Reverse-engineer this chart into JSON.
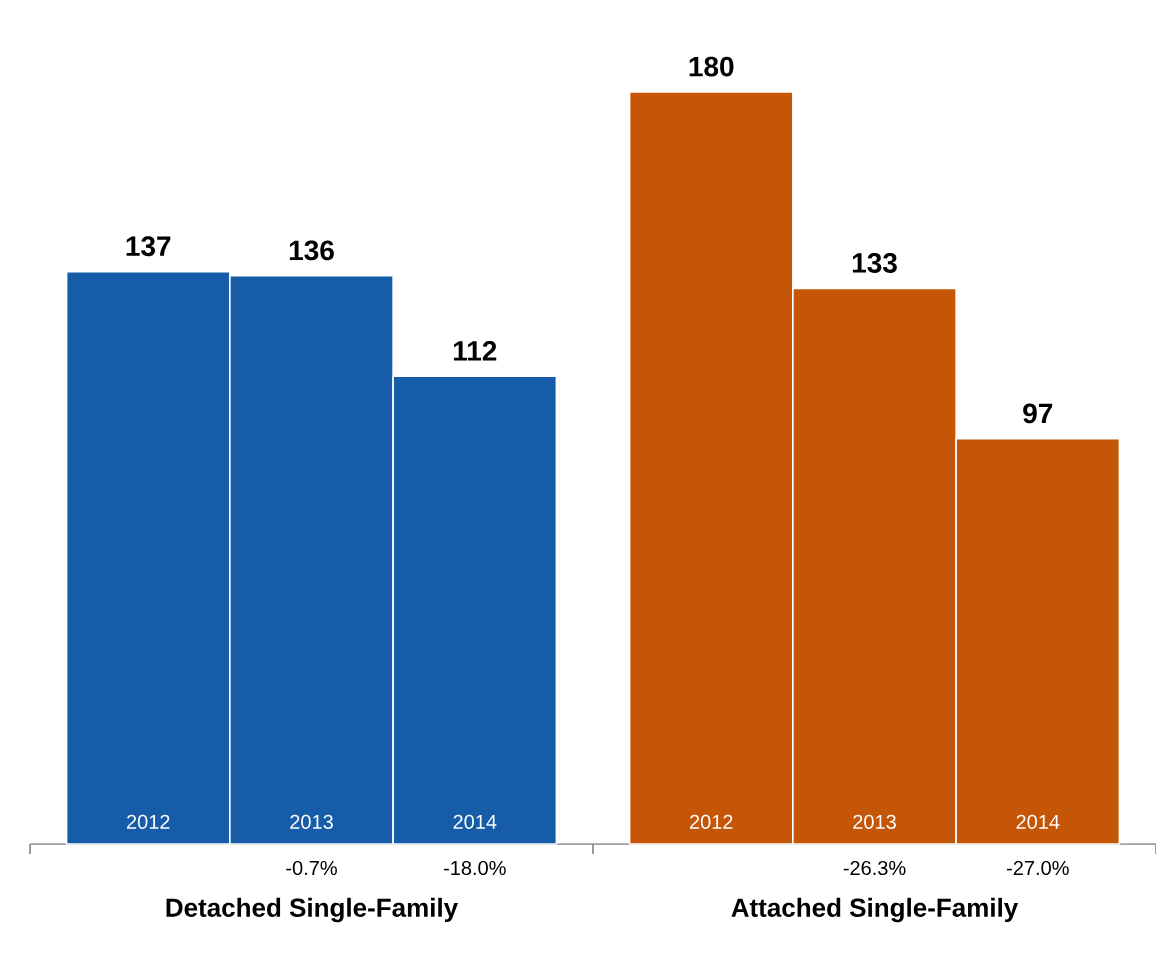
{
  "chart_data": {
    "type": "bar",
    "categories": [
      "Detached Single-Family",
      "Attached Single-Family"
    ],
    "series": [
      {
        "name": "2012",
        "colors": [
          "#165ca9",
          "#c55507"
        ],
        "values": [
          137,
          180
        ]
      },
      {
        "name": "2013",
        "colors": [
          "#165ca9",
          "#c55507"
        ],
        "values": [
          136,
          133
        ]
      },
      {
        "name": "2014",
        "colors": [
          "#165ca9",
          "#c55507"
        ],
        "values": [
          112,
          97
        ]
      }
    ],
    "data_labels": true,
    "annotations": [
      "-0.7%",
      "-18.0%",
      "-26.3%",
      "-27.0%"
    ]
  }
}
